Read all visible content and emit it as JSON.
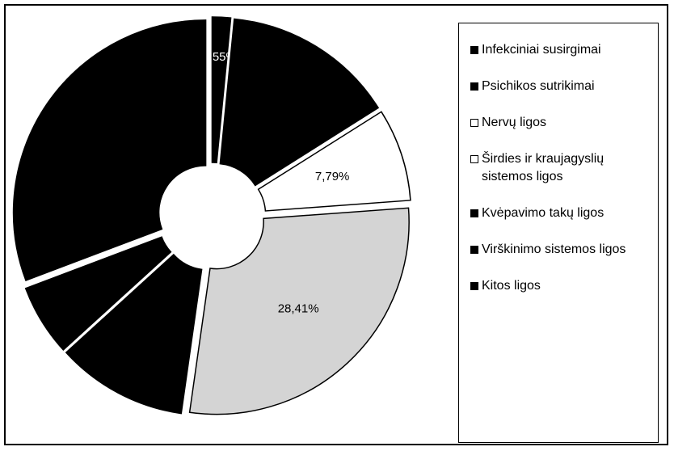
{
  "chart_data": {
    "type": "donut",
    "categories": [
      "Infekciniai susirgimai",
      "Psichikos sutrikimai",
      "Nervų ligos",
      "Širdies ir kraujagyslių sistemos ligos",
      "Kvėpavimo takų ligos",
      "Virškinimo sistemos ligos",
      "Kitos ligos"
    ],
    "values": [
      1.55,
      14.5,
      7.79,
      28.41,
      11,
      6,
      30.75
    ],
    "value_labels": [
      "1,55%",
      null,
      "7,79%",
      "28,41%",
      null,
      null,
      null
    ],
    "colors": [
      "#000000",
      "#000000",
      "#ffffff",
      "#d4d4d4",
      "#000000",
      "#000000",
      "#000000"
    ]
  }
}
